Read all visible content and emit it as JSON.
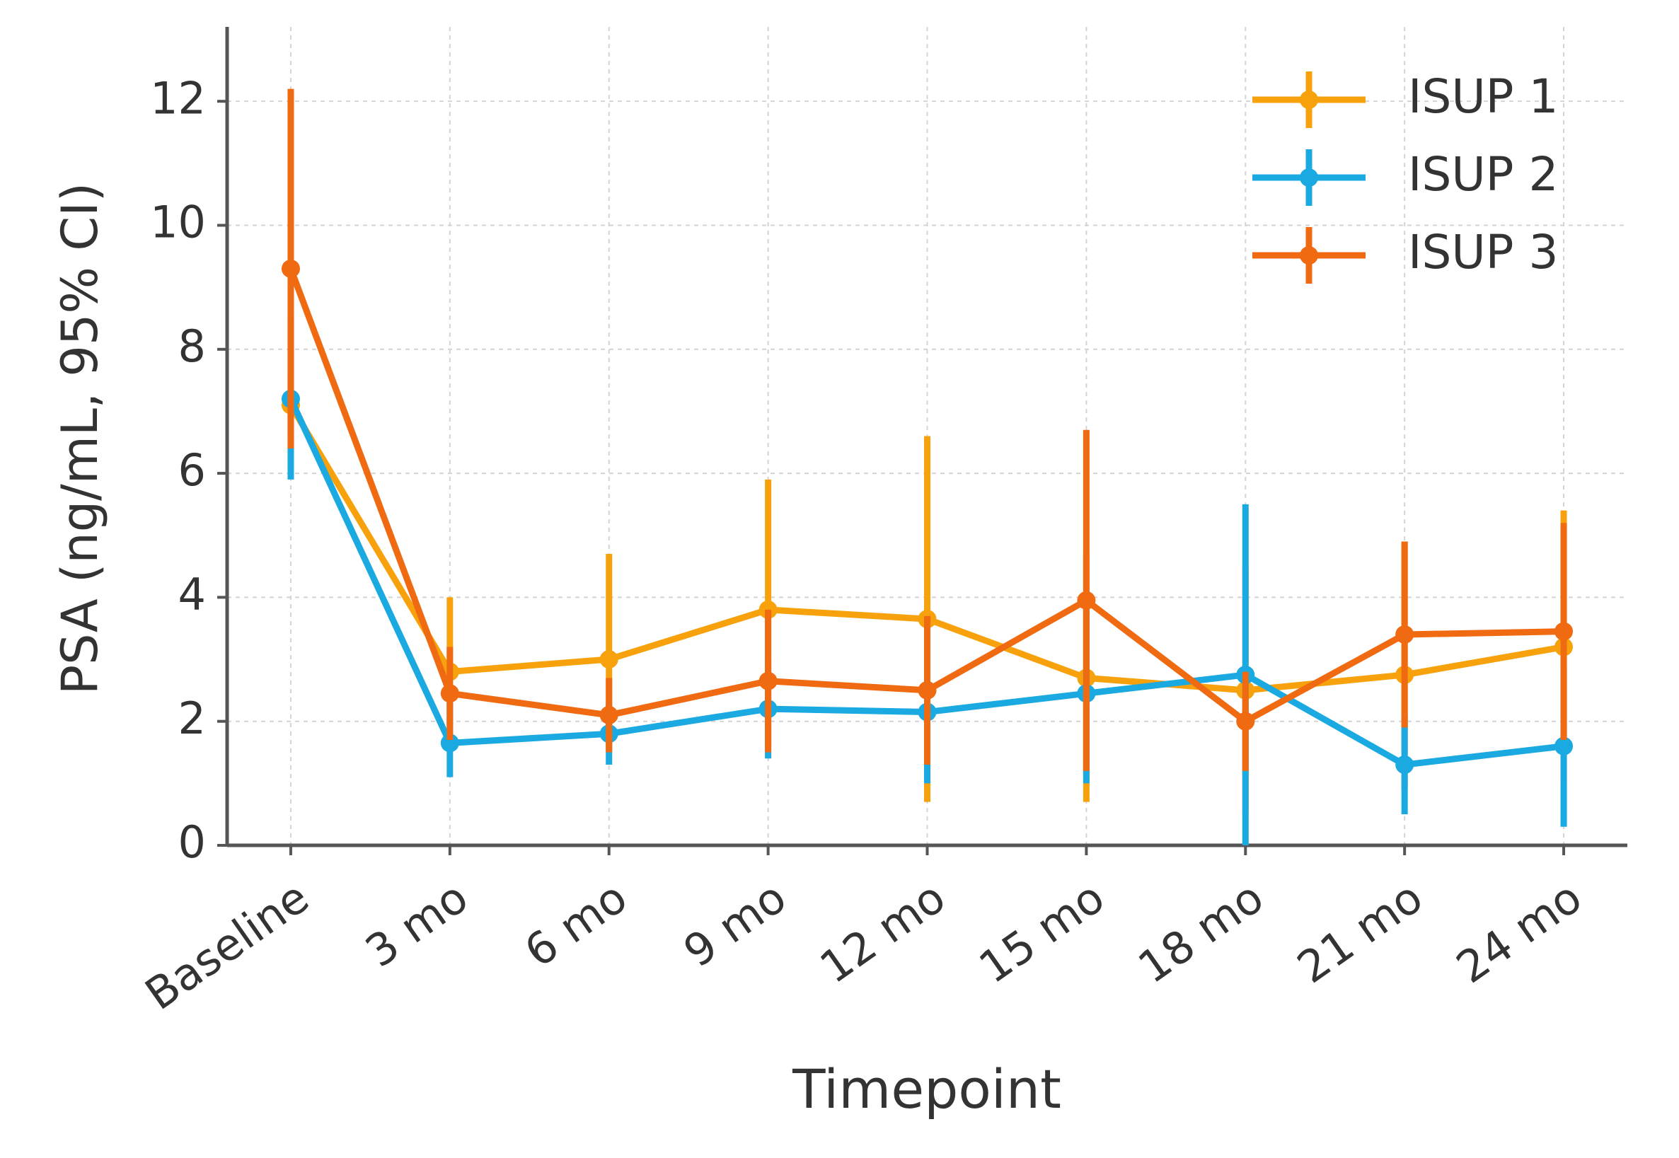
{
  "chart_data": {
    "type": "line",
    "x_label": "Timepoint",
    "y_label": "PSA (ng/mL, 95% CI)",
    "categories": [
      "Baseline",
      "3 mo",
      "6 mo",
      "9 mo",
      "12 mo",
      "15 mo",
      "18 mo",
      "21 mo",
      "24 mo"
    ],
    "series": [
      {
        "name": "ISUP 1",
        "color": "#f7a20c",
        "values": [
          7.1,
          2.8,
          3.0,
          3.8,
          3.65,
          2.7,
          2.5,
          2.75,
          3.2
        ],
        "ci_low": [
          6.6,
          1.9,
          1.5,
          1.6,
          0.7,
          0.7,
          0.5,
          0.9,
          1.0
        ],
        "ci_high": [
          7.6,
          4.0,
          4.7,
          5.9,
          6.6,
          4.7,
          4.5,
          4.9,
          5.4
        ]
      },
      {
        "name": "ISUP 2",
        "color": "#1ba9e1",
        "values": [
          7.2,
          1.65,
          1.8,
          2.2,
          2.15,
          2.45,
          2.75,
          1.3,
          1.6
        ],
        "ci_low": [
          5.9,
          1.1,
          1.3,
          1.4,
          1.0,
          1.0,
          0.0,
          0.5,
          0.3
        ],
        "ci_high": [
          8.5,
          2.3,
          2.3,
          3.0,
          3.3,
          3.9,
          5.5,
          2.1,
          2.9
        ]
      },
      {
        "name": "ISUP 3",
        "color": "#f06a12",
        "values": [
          9.3,
          2.45,
          2.1,
          2.65,
          2.5,
          3.95,
          2.0,
          3.4,
          3.45
        ],
        "ci_low": [
          6.4,
          1.7,
          1.5,
          1.5,
          1.3,
          1.2,
          1.2,
          1.9,
          1.7
        ],
        "ci_high": [
          12.2,
          3.2,
          2.7,
          3.8,
          3.7,
          6.7,
          2.8,
          4.9,
          5.2
        ]
      }
    ],
    "ylim": [
      0,
      13.2
    ],
    "yticks": [
      0,
      2,
      4,
      6,
      8,
      10,
      12
    ],
    "grid": true,
    "legend": "upper right"
  }
}
